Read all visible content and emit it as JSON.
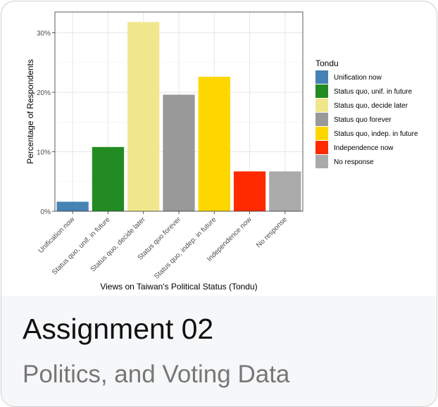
{
  "card": {
    "title": "Assignment 02",
    "subtitle": "Politics, and Voting Data"
  },
  "chart_data": {
    "type": "bar",
    "categories": [
      "Unification now",
      "Status quo, unif. in future",
      "Status quo, decide later",
      "Status quo forever",
      "Status quo, indep. in future",
      "Independence now",
      "No response"
    ],
    "values": [
      1.6,
      10.8,
      31.8,
      19.6,
      22.6,
      6.7,
      6.7
    ],
    "colors": [
      "#4682b4",
      "#228b22",
      "#f0e68c",
      "#999999",
      "#ffd700",
      "#ff2a00",
      "#aaaaaa"
    ],
    "ylabel": "Percentage of Respondents",
    "xlabel": "Views on Taiwan's Political Status (Tondu)",
    "ylim": [
      0,
      33.5
    ],
    "yticks": [
      0,
      10,
      20,
      30
    ],
    "ytick_labels": [
      "0%",
      "10%",
      "20%",
      "30%"
    ],
    "legend": {
      "title": "Tondu",
      "placement": "right",
      "entries": [
        "Unification now",
        "Status quo, unif. in future",
        "Status quo, decide later",
        "Status quo forever",
        "Status quo, indep. in future",
        "Independence now",
        "No response"
      ]
    },
    "grid": true
  }
}
